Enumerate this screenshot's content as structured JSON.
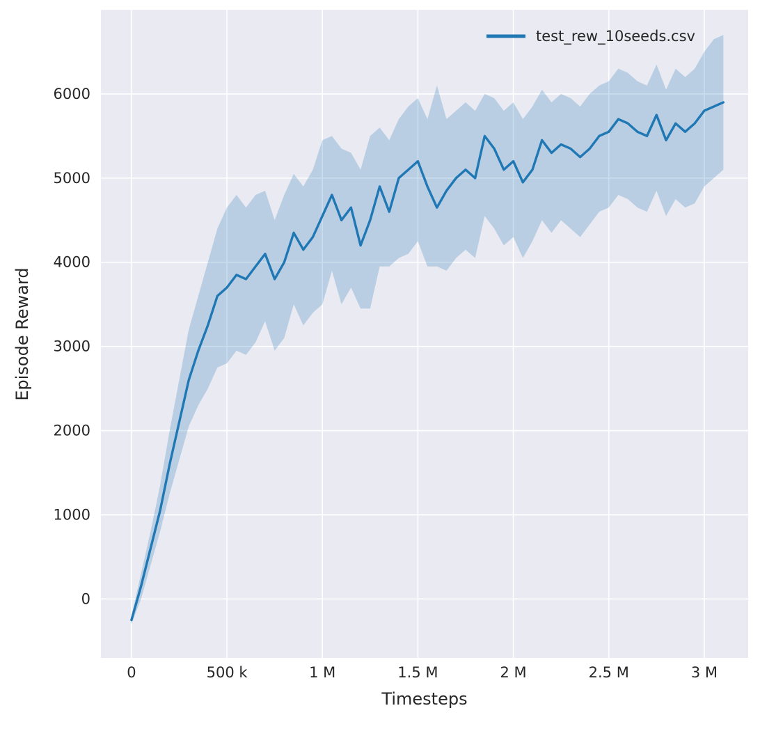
{
  "chart_data": {
    "type": "line",
    "title": "",
    "xlabel": "Timesteps",
    "ylabel": "Episode Reward",
    "xlim": [
      -160000,
      3230000
    ],
    "ylim": [
      -700,
      7000
    ],
    "grid": true,
    "legend_position": "upper right",
    "colors": {
      "line": "#1f77b4",
      "band_opacity": 0.24,
      "axes_background": "#eaeaf2",
      "grid": "#ffffff",
      "text": "#262626"
    },
    "xticks": [
      {
        "value": 0,
        "label": "0"
      },
      {
        "value": 500000,
        "label": "500 k"
      },
      {
        "value": 1000000,
        "label": "1 M"
      },
      {
        "value": 1500000,
        "label": "1.5 M"
      },
      {
        "value": 2000000,
        "label": "2 M"
      },
      {
        "value": 2500000,
        "label": "2.5 M"
      },
      {
        "value": 3000000,
        "label": "3 M"
      }
    ],
    "yticks": [
      {
        "value": 0,
        "label": "0"
      },
      {
        "value": 1000,
        "label": "1000"
      },
      {
        "value": 2000,
        "label": "2000"
      },
      {
        "value": 3000,
        "label": "3000"
      },
      {
        "value": 4000,
        "label": "4000"
      },
      {
        "value": 5000,
        "label": "5000"
      },
      {
        "value": 6000,
        "label": "6000"
      }
    ],
    "series": [
      {
        "name": "test_rew_10seeds.csv",
        "x": [
          0,
          50000,
          100000,
          150000,
          200000,
          250000,
          300000,
          350000,
          400000,
          450000,
          500000,
          550000,
          600000,
          650000,
          700000,
          750000,
          800000,
          850000,
          900000,
          950000,
          1000000,
          1050000,
          1100000,
          1150000,
          1200000,
          1250000,
          1300000,
          1350000,
          1400000,
          1450000,
          1500000,
          1550000,
          1600000,
          1650000,
          1700000,
          1750000,
          1800000,
          1850000,
          1900000,
          1950000,
          2000000,
          2050000,
          2100000,
          2150000,
          2200000,
          2250000,
          2300000,
          2350000,
          2400000,
          2450000,
          2500000,
          2550000,
          2600000,
          2650000,
          2700000,
          2750000,
          2800000,
          2850000,
          2900000,
          2950000,
          3000000,
          3050000,
          3100000
        ],
        "mean": [
          -250,
          150,
          600,
          1050,
          1600,
          2100,
          2600,
          2950,
          3250,
          3600,
          3700,
          3850,
          3800,
          3950,
          4100,
          3800,
          4000,
          4350,
          4150,
          4300,
          4550,
          4800,
          4500,
          4650,
          4200,
          4500,
          4900,
          4600,
          5000,
          5100,
          5200,
          4900,
          4650,
          4850,
          5000,
          5100,
          5000,
          5500,
          5350,
          5100,
          5200,
          4950,
          5100,
          5450,
          5300,
          5400,
          5350,
          5250,
          5350,
          5500,
          5550,
          5700,
          5650,
          5550,
          5500,
          5750,
          5450,
          5650,
          5550,
          5650,
          5800,
          5850,
          5900
        ],
        "lower": [
          -300,
          0,
          400,
          800,
          1250,
          1650,
          2050,
          2300,
          2500,
          2750,
          2800,
          2950,
          2900,
          3050,
          3300,
          2950,
          3100,
          3500,
          3250,
          3400,
          3500,
          3900,
          3500,
          3700,
          3450,
          3450,
          3950,
          3950,
          4050,
          4100,
          4250,
          3950,
          3950,
          3900,
          4050,
          4150,
          4050,
          4550,
          4400,
          4200,
          4300,
          4050,
          4250,
          4500,
          4350,
          4500,
          4400,
          4300,
          4450,
          4600,
          4650,
          4800,
          4750,
          4650,
          4600,
          4850,
          4550,
          4750,
          4650,
          4700,
          4900,
          5000,
          5100
        ],
        "upper": [
          -200,
          300,
          800,
          1350,
          2000,
          2600,
          3200,
          3600,
          4000,
          4400,
          4650,
          4800,
          4650,
          4800,
          4850,
          4500,
          4800,
          5050,
          4900,
          5100,
          5450,
          5500,
          5350,
          5300,
          5100,
          5500,
          5600,
          5450,
          5700,
          5850,
          5950,
          5700,
          6100,
          5700,
          5800,
          5900,
          5800,
          6000,
          5950,
          5800,
          5900,
          5700,
          5850,
          6050,
          5900,
          6000,
          5950,
          5850,
          6000,
          6100,
          6150,
          6300,
          6250,
          6150,
          6100,
          6350,
          6050,
          6300,
          6200,
          6300,
          6500,
          6650,
          6700
        ]
      }
    ]
  }
}
